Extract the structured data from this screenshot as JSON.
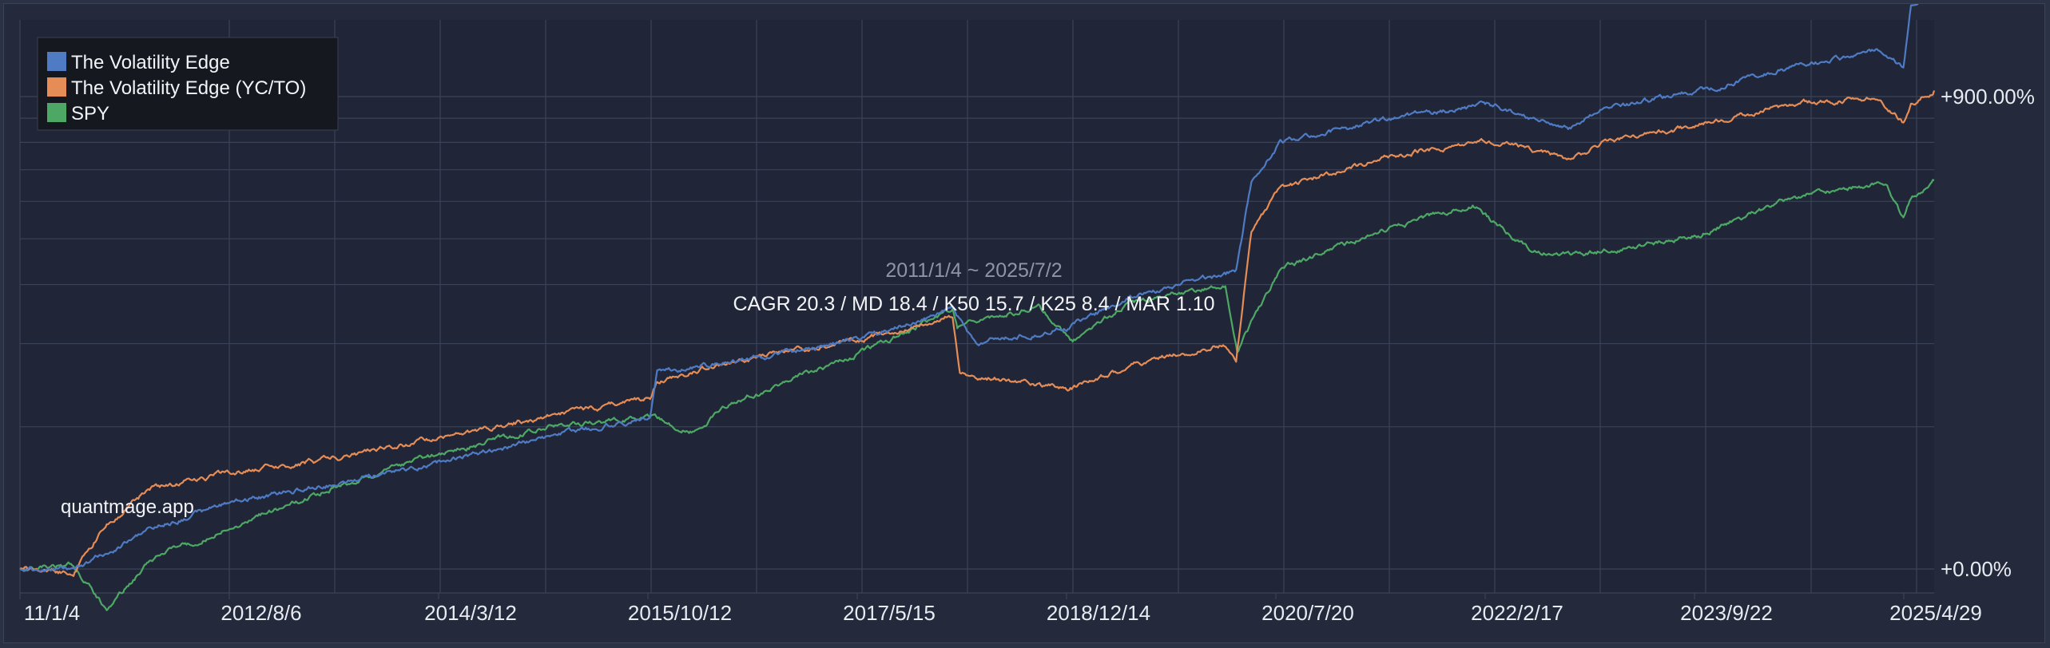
{
  "chart_data": {
    "type": "line",
    "y_scale": "log",
    "grid": true,
    "legend_position": "top-left",
    "x_tick_labels": [
      "11/1/4",
      "2012/8/6",
      "2014/3/12",
      "2015/10/12",
      "2017/5/15",
      "2018/12/14",
      "2020/7/20",
      "2022/2/17",
      "2023/9/22",
      "2025/4/29"
    ],
    "y_tick_labels": [
      "+900.00%",
      "+0.00%"
    ],
    "annotation_period": "2011/1/4 ~ 2025/7/2",
    "annotation_stats": "CAGR 20.3 / MD 18.4 / K50 15.7 / K25 8.4 / MAR 1.10",
    "watermark": "quantmage.app",
    "series": [
      {
        "name": "The Volatility Edge",
        "color": "#4f7bc4",
        "x": [
          "2011-01-04",
          "2011-06-01",
          "2011-09-01",
          "2012-01-01",
          "2012-08-06",
          "2013-06-01",
          "2014-03-12",
          "2015-01-01",
          "2015-10-12",
          "2015-11-01",
          "2016-06-01",
          "2017-05-15",
          "2018-01-26",
          "2018-04-01",
          "2018-12-14",
          "2019-06-01",
          "2020-02-20",
          "2020-03-20",
          "2020-05-01",
          "2020-07-20",
          "2021-06-01",
          "2022-02-17",
          "2022-10-01",
          "2023-01-01",
          "2023-09-22",
          "2024-06-01",
          "2025-02-01",
          "2025-04-08",
          "2025-04-29",
          "2025-07-02"
        ],
        "values": [
          0,
          0,
          8,
          22,
          38,
          52,
          68,
          90,
          110,
          160,
          175,
          205,
          255,
          200,
          225,
          275,
          320,
          330,
          560,
          700,
          800,
          860,
          760,
          840,
          930,
          1050,
          1150,
          1050,
          1450,
          1560
        ]
      },
      {
        "name": "The Volatility Edge (YC/TO)",
        "color": "#e58c57",
        "x": [
          "2011-01-04",
          "2011-06-01",
          "2011-09-01",
          "2012-01-01",
          "2012-08-06",
          "2013-06-01",
          "2014-03-12",
          "2015-01-01",
          "2015-10-12",
          "2015-11-01",
          "2016-06-01",
          "2017-05-15",
          "2018-01-26",
          "2018-02-15",
          "2018-12-14",
          "2019-06-01",
          "2020-02-20",
          "2020-03-20",
          "2020-05-01",
          "2020-07-20",
          "2021-06-01",
          "2022-02-17",
          "2022-10-01",
          "2023-01-01",
          "2023-09-22",
          "2024-06-01",
          "2025-02-01",
          "2025-04-08",
          "2025-04-29",
          "2025-07-02"
        ],
        "values": [
          0,
          -2,
          25,
          48,
          60,
          72,
          90,
          110,
          130,
          150,
          175,
          205,
          245,
          160,
          140,
          170,
          200,
          180,
          420,
          540,
          650,
          710,
          630,
          700,
          770,
          860,
          900,
          780,
          870,
          930
        ]
      },
      {
        "name": "SPY",
        "color": "#4ea865",
        "x": [
          "2011-01-04",
          "2011-06-01",
          "2011-09-01",
          "2012-01-01",
          "2012-08-06",
          "2013-06-01",
          "2014-03-12",
          "2015-01-01",
          "2015-10-12",
          "2016-02-11",
          "2016-06-01",
          "2017-05-15",
          "2018-01-26",
          "2018-02-08",
          "2018-09-20",
          "2018-12-24",
          "2019-06-01",
          "2020-02-19",
          "2020-03-23",
          "2020-07-20",
          "2021-06-01",
          "2022-01-03",
          "2022-06-16",
          "2022-10-12",
          "2023-09-22",
          "2024-06-01",
          "2025-02-19",
          "2025-04-08",
          "2025-04-29",
          "2025-07-02"
        ],
        "values": [
          0,
          2,
          -18,
          5,
          22,
          50,
          75,
          100,
          110,
          95,
          125,
          185,
          255,
          225,
          260,
          205,
          265,
          300,
          190,
          330,
          430,
          490,
          370,
          360,
          410,
          510,
          560,
          450,
          510,
          565
        ]
      }
    ]
  }
}
